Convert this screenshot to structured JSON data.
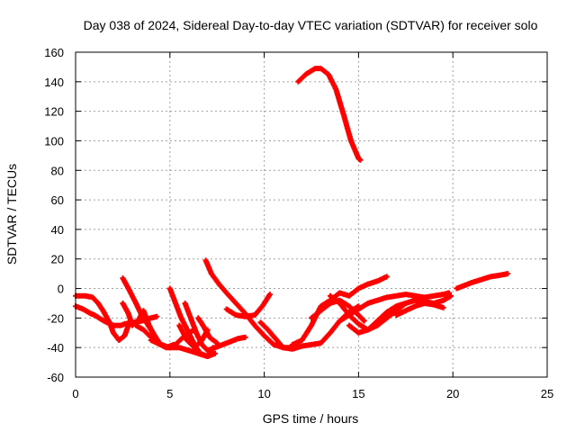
{
  "chart_data": {
    "type": "scatter",
    "title": "Day 038 of 2024, Sidereal Day-to-day VTEC variation (SDTVAR) for receiver solo",
    "xlabel": "GPS time / hours",
    "ylabel": "SDTVAR / TECUs",
    "xlim": [
      0,
      25
    ],
    "ylim": [
      -60,
      160
    ],
    "xticks": [
      "0",
      "5",
      "10",
      "15",
      "20",
      "25"
    ],
    "yticks": [
      "-60",
      "-40",
      "-20",
      "0",
      "20",
      "40",
      "60",
      "80",
      "100",
      "120",
      "140",
      "160"
    ],
    "grid": true,
    "legend": "none",
    "marker": "plus",
    "color": "#ff0000",
    "series": [
      {
        "x": [
          11.8,
          12.2,
          12.7,
          13.0,
          13.4,
          13.8,
          14.2,
          14.6,
          15.0,
          15.1
        ],
        "y": [
          140,
          145,
          149,
          149,
          145,
          135,
          118,
          100,
          88,
          87
        ]
      },
      {
        "x": [
          0,
          0.4,
          0.8,
          1.0,
          1.5,
          2.0,
          2.4,
          2.6,
          3.0,
          3.5,
          4.0,
          4.3
        ],
        "y": [
          -12,
          -14,
          -17,
          -18,
          -22,
          -25,
          -25,
          -24,
          -23,
          -22,
          -20,
          -19
        ]
      },
      {
        "x": [
          0,
          0.5,
          0.9,
          1.2,
          1.5,
          1.8,
          2.0,
          2.3,
          2.6,
          2.8
        ],
        "y": [
          -5,
          -5,
          -6,
          -10,
          -16,
          -23,
          -30,
          -35,
          -32,
          -25
        ]
      },
      {
        "x": [
          2.5,
          2.8,
          3.2,
          3.5,
          3.9,
          4.2,
          4.5,
          4.8,
          5.2
        ],
        "y": [
          7,
          0,
          -10,
          -18,
          -26,
          -32,
          -38,
          -40,
          -38
        ]
      },
      {
        "x": [
          2.5,
          2.8,
          3.0,
          3.3,
          3.6,
          3.9,
          4.3
        ],
        "y": [
          -10,
          -17,
          -25,
          -22,
          -15,
          -25,
          -35
        ]
      },
      {
        "x": [
          3.2,
          3.6,
          4.0,
          4.4,
          4.9,
          5.3,
          5.7,
          6.0,
          6.3
        ],
        "y": [
          -25,
          -28,
          -33,
          -37,
          -40,
          -38,
          -33,
          -30,
          -28
        ]
      },
      {
        "x": [
          4.0,
          4.5,
          5.0,
          5.5,
          6.0,
          6.5,
          7.0,
          7.4
        ],
        "y": [
          -35,
          -38,
          -40,
          -40,
          -42,
          -44,
          -46,
          -44
        ]
      },
      {
        "x": [
          5.0,
          5.3,
          5.6,
          6.0,
          6.3,
          6.6,
          7.0,
          7.3
        ],
        "y": [
          0,
          -10,
          -20,
          -30,
          -38,
          -44,
          -46,
          -40
        ]
      },
      {
        "x": [
          5.8,
          6.1,
          6.4,
          6.7,
          7.0,
          7.4,
          7.8,
          8.2,
          8.6,
          9.0
        ],
        "y": [
          -10,
          -20,
          -30,
          -38,
          -42,
          -40,
          -38,
          -36,
          -34,
          -33
        ]
      },
      {
        "x": [
          6.5,
          6.8,
          7.1,
          7.5
        ],
        "y": [
          -20,
          -26,
          -33,
          -37
        ]
      },
      {
        "x": [
          5.5,
          5.9,
          6.3,
          6.7,
          7.0
        ],
        "y": [
          -25,
          -35,
          -40,
          -35,
          -28
        ]
      },
      {
        "x": [
          6.9,
          7.2,
          7.6,
          8.0,
          8.5,
          9.0,
          9.5,
          10.0,
          10.5,
          11.0,
          11.4
        ],
        "y": [
          19,
          10,
          3,
          -3,
          -10,
          -17,
          -25,
          -32,
          -38,
          -40,
          -40
        ]
      },
      {
        "x": [
          8.0,
          8.5,
          9.0,
          9.5,
          9.9,
          10.3
        ],
        "y": [
          -14,
          -18,
          -19,
          -18,
          -12,
          -4
        ]
      },
      {
        "x": [
          9.8,
          10.2,
          10.6,
          11.0,
          11.5,
          12.0,
          12.5,
          13.0,
          13.5,
          14.0,
          14.5,
          15.0
        ],
        "y": [
          -23,
          -28,
          -34,
          -40,
          -41,
          -39,
          -38,
          -37,
          -30,
          -22,
          -16,
          -12
        ]
      },
      {
        "x": [
          11.5,
          12.0,
          12.5,
          13.0,
          13.5,
          14.0,
          14.5,
          15.0,
          15.5,
          16.0,
          16.5
        ],
        "y": [
          -38,
          -35,
          -25,
          -12,
          -8,
          -3,
          -5,
          0,
          3,
          5,
          8
        ]
      },
      {
        "x": [
          12.5,
          13.0,
          13.5,
          14.0,
          14.5,
          15.0,
          15.3
        ],
        "y": [
          -20,
          -15,
          -10,
          -8,
          -12,
          -18,
          -22
        ]
      },
      {
        "x": [
          14.5,
          15.0,
          15.5,
          16.0,
          16.5,
          17.0,
          17.5,
          18.0
        ],
        "y": [
          -25,
          -30,
          -28,
          -22,
          -16,
          -12,
          -10,
          -8
        ]
      },
      {
        "x": [
          13.5,
          14.0,
          14.5,
          15.0,
          15.5,
          16.0,
          16.5,
          17.0,
          17.5
        ],
        "y": [
          -5,
          -10,
          -18,
          -24,
          -28,
          -25,
          -20,
          -15,
          -10
        ]
      },
      {
        "x": [
          14.0,
          14.5,
          15.0,
          15.5,
          16.0,
          16.5,
          17.0,
          17.5,
          18.0,
          18.5,
          19.0,
          19.5,
          19.8
        ],
        "y": [
          -22,
          -18,
          -14,
          -10,
          -8,
          -6,
          -5,
          -4,
          -5,
          -6,
          -5,
          -4,
          -3
        ]
      },
      {
        "x": [
          16.0,
          16.5,
          17.0,
          17.5,
          18.0,
          18.5,
          19.0,
          19.5,
          19.9
        ],
        "y": [
          -22,
          -18,
          -14,
          -10,
          -8,
          -9,
          -10,
          -8,
          -5
        ]
      },
      {
        "x": [
          17.0,
          17.5,
          18.0,
          18.5,
          19.0,
          19.5
        ],
        "y": [
          -18,
          -15,
          -12,
          -10,
          -11,
          -13
        ]
      },
      {
        "x": [
          20.2,
          20.6,
          21.0,
          21.5,
          22.0,
          22.5,
          22.9
        ],
        "y": [
          0,
          2,
          4,
          6,
          8,
          9,
          10
        ]
      }
    ]
  }
}
